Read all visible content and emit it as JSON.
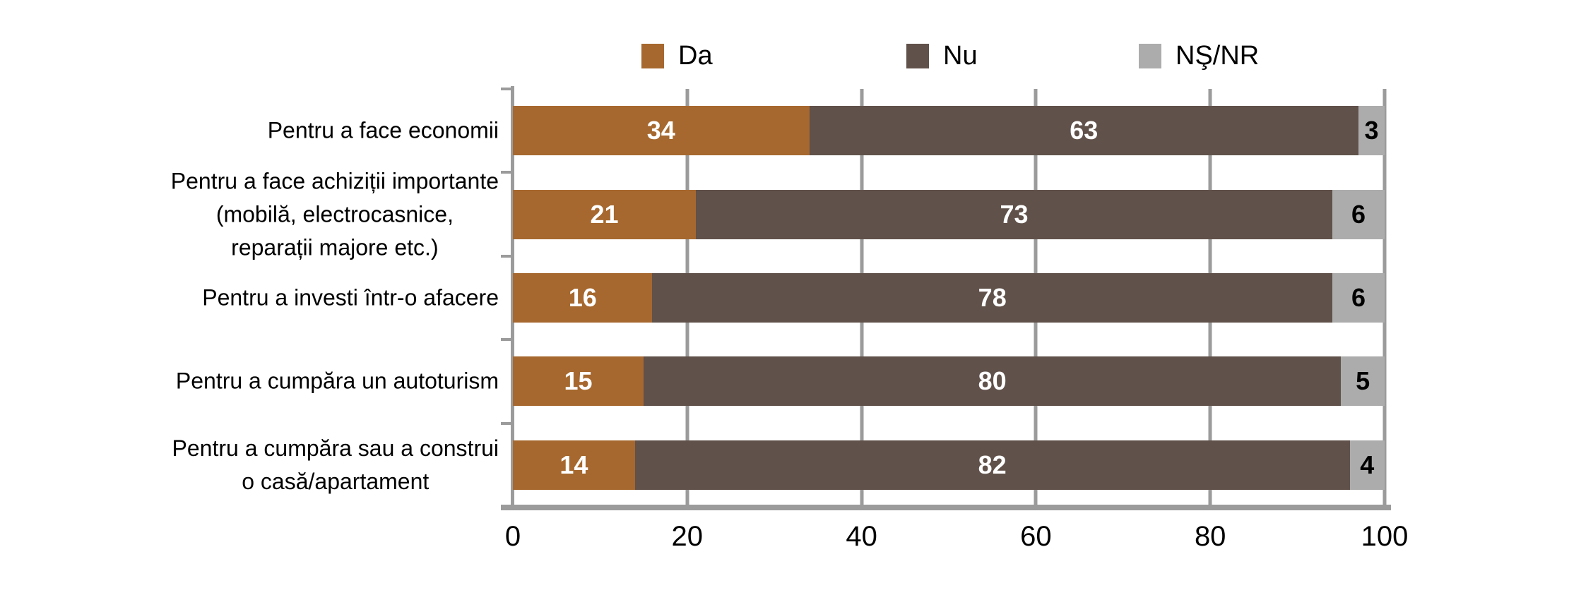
{
  "chart_data": {
    "type": "bar",
    "stacked": true,
    "orientation": "horizontal",
    "title": "",
    "xlabel": "",
    "ylabel": "",
    "categories": [
      "Pentru a face economii",
      "Pentru a face achiziții importante\n(mobilă, electrocasnice,\nreparații majore etc.)",
      "Pentru a investi într-o afacere",
      "Pentru a cumpăra un autoturism",
      "Pentru a cumpăra sau a construi\no casă/apartament"
    ],
    "series": [
      {
        "name": "Da",
        "key": "da",
        "color": "#A6682E",
        "label_color": "#FFFFFF",
        "values": [
          34,
          21,
          16,
          15,
          14
        ]
      },
      {
        "name": "Nu",
        "key": "nu",
        "color": "#60514A",
        "label_color": "#FFFFFF",
        "values": [
          63,
          73,
          78,
          80,
          82
        ]
      },
      {
        "name": "NŞ/NR",
        "key": "ns-nr",
        "color": "#ACACAC",
        "label_color": "#000000",
        "values": [
          3,
          6,
          6,
          5,
          4
        ]
      }
    ],
    "xlim": [
      0,
      100
    ],
    "x_ticks": [
      "0",
      "20",
      "40",
      "60",
      "80",
      "100"
    ],
    "legend_position": "top",
    "grid": true,
    "colors": {
      "axis": "#9B9B9B",
      "gridline": "#9B9B9B",
      "background": "#FFFFFF",
      "text": "#000000"
    }
  }
}
